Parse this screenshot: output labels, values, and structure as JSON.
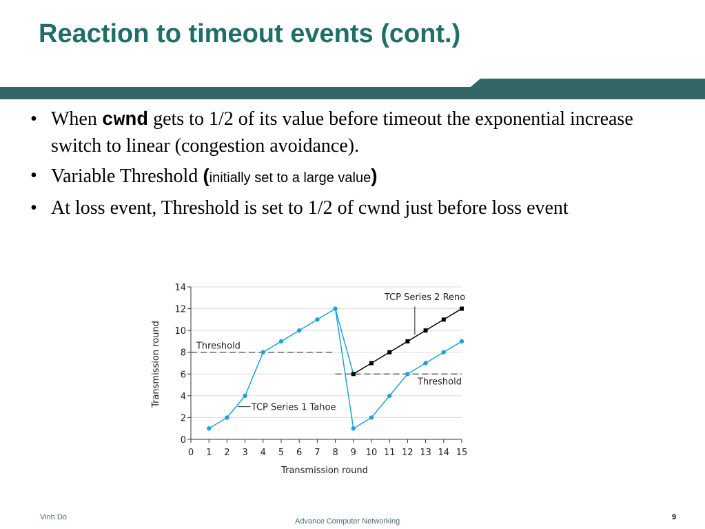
{
  "slide": {
    "title": "Reaction to timeout events (cont.)",
    "bullets": [
      {
        "pre": "When ",
        "code": "cwnd",
        "post": " gets to 1/2 of its value before timeout the exponential increase switch to linear (congestion avoidance)."
      },
      {
        "pre": "Variable Threshold ",
        "open": "(",
        "small": "initially set to a large value",
        "close": ")"
      },
      {
        "text": "At loss event, Threshold is set to 1/2 of cwnd just before loss event"
      }
    ]
  },
  "colors": {
    "title": "#1f6e68",
    "band": "#336666",
    "tahoe": "#1aa3dd",
    "reno": "#000000"
  },
  "chart_data": {
    "type": "line",
    "xlabel": "Transmission round",
    "ylabel": "Transmission round",
    "xlim": [
      0,
      15
    ],
    "ylim": [
      0,
      14
    ],
    "x_ticks": [
      "0",
      "1",
      "2",
      "3",
      "4",
      "5",
      "6",
      "7",
      "8",
      "9",
      "10",
      "11",
      "12",
      "13",
      "14",
      "15"
    ],
    "y_ticks": [
      "0",
      "2",
      "4",
      "6",
      "8",
      "10",
      "12",
      "14"
    ],
    "grid": true,
    "series": [
      {
        "name": "TCP Series 1 Tahoe",
        "x": [
          1,
          2,
          3,
          4,
          5,
          6,
          7,
          8,
          9,
          10,
          11,
          12,
          13,
          14,
          15
        ],
        "y": [
          1,
          2,
          4,
          8,
          9,
          10,
          11,
          12,
          1,
          2,
          4,
          6,
          7,
          8,
          9
        ]
      },
      {
        "name": "TCP Series 2 Reno",
        "x": [
          9,
          10,
          11,
          12,
          13,
          14,
          15
        ],
        "y": [
          6,
          7,
          8,
          9,
          10,
          11,
          12
        ]
      }
    ],
    "thresholds": [
      {
        "label": "Threshold",
        "x_start": 0,
        "x_end": 8,
        "y": 8
      },
      {
        "label": "Threshold",
        "x_start": 8,
        "x_end": 15,
        "y": 6
      }
    ]
  },
  "footer": {
    "author": "Vinh Do",
    "course": "Advance Computer Networking",
    "page": "9"
  }
}
